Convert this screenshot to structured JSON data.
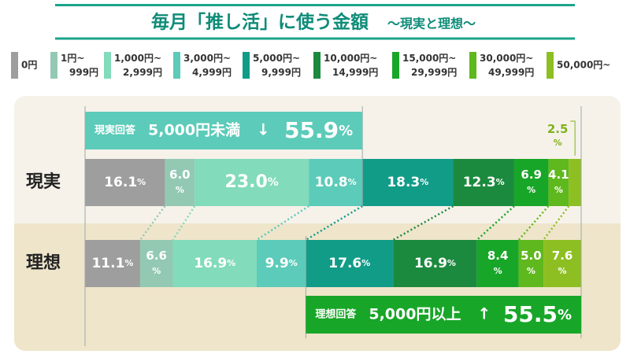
{
  "chart_data": {
    "type": "bar",
    "orientation": "horizontal",
    "stacked": true,
    "title": "毎月「推し活」に使う金額",
    "subtitle": "〜現実と理想〜",
    "categories": [
      "現実",
      "理想"
    ],
    "xlim": [
      0,
      100
    ],
    "series": [
      {
        "name": "0円",
        "color": "#9e9e9e",
        "values": [
          16.1,
          11.1
        ],
        "value_labels": [
          "16.1%",
          "11.1%"
        ]
      },
      {
        "name": "1円~999円",
        "color": "#93c9b3",
        "values": [
          6.0,
          6.6
        ],
        "value_labels": [
          "6.0%",
          "6.6%"
        ]
      },
      {
        "name": "1,000円~2,999円",
        "color": "#82dbbb",
        "values": [
          23.0,
          16.9
        ],
        "value_labels": [
          "23.0%",
          "16.9%"
        ]
      },
      {
        "name": "3,000円~4,999円",
        "color": "#5ccbb9",
        "values": [
          10.8,
          9.9
        ],
        "value_labels": [
          "10.8%",
          "9.9%"
        ]
      },
      {
        "name": "5,000円~9,999円",
        "color": "#119c88",
        "values": [
          18.3,
          17.6
        ],
        "value_labels": [
          "18.3%",
          "17.6%"
        ]
      },
      {
        "name": "10,000円~14,999円",
        "color": "#1c8a3e",
        "values": [
          12.3,
          16.9
        ],
        "value_labels": [
          "12.3%",
          "16.9%"
        ]
      },
      {
        "name": "15,000円~29,999円",
        "color": "#18a628",
        "values": [
          6.9,
          8.4
        ],
        "value_labels": [
          "6.9%",
          "8.4%"
        ]
      },
      {
        "name": "30,000円~49,999円",
        "color": "#5fb81e",
        "values": [
          4.1,
          5.0
        ],
        "value_labels": [
          "4.1%",
          "5.0%"
        ]
      },
      {
        "name": "50,000円~",
        "color": "#8dbf22",
        "values": [
          2.5,
          7.6
        ],
        "value_labels": [
          "2.5%",
          "7.6%"
        ]
      }
    ],
    "annotations": [
      {
        "text": "現実回答",
        "range": "5,000円未満",
        "value_label": "55.9%"
      },
      {
        "text": "理想回答",
        "range": "5,000円以上",
        "value_label": "55.5%"
      }
    ]
  }
}
